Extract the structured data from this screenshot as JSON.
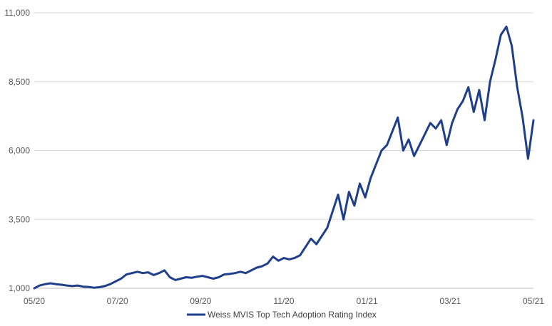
{
  "chart_data": {
    "type": "line",
    "title": "",
    "xlabel": "",
    "ylabel": "",
    "ylim": [
      1000,
      11000
    ],
    "y_ticks": [
      1000,
      3500,
      6000,
      8500,
      11000
    ],
    "y_tick_labels": [
      "1,000",
      "3,500",
      "6,000",
      "8,500",
      "11,000"
    ],
    "x_ticks": [
      "05/20",
      "07/20",
      "09/20",
      "11/20",
      "01/21",
      "03/21",
      "05/21"
    ],
    "grid": "horizontal",
    "legend": "bottom",
    "colors": {
      "line": "#1f3f8a",
      "grid": "#d9d9d9",
      "text": "#595959"
    },
    "series": [
      {
        "name": "Weiss MVIS Top Tech Adoption Rating Index",
        "points": [
          [
            "05/20",
            1000
          ],
          [
            "05/20",
            1100
          ],
          [
            "05/20",
            1150
          ],
          [
            "05/20",
            1180
          ],
          [
            "05/20",
            1150
          ],
          [
            "05/20",
            1130
          ],
          [
            "05/20",
            1100
          ],
          [
            "06/20",
            1080
          ],
          [
            "06/20",
            1100
          ],
          [
            "06/20",
            1060
          ],
          [
            "06/20",
            1050
          ],
          [
            "06/20",
            1020
          ],
          [
            "06/20",
            1040
          ],
          [
            "07/20",
            1080
          ],
          [
            "07/20",
            1150
          ],
          [
            "07/20",
            1250
          ],
          [
            "07/20",
            1350
          ],
          [
            "07/20",
            1500
          ],
          [
            "07/20",
            1550
          ],
          [
            "07/20",
            1600
          ],
          [
            "08/20",
            1550
          ],
          [
            "08/20",
            1580
          ],
          [
            "08/20",
            1480
          ],
          [
            "08/20",
            1550
          ],
          [
            "08/20",
            1650
          ],
          [
            "08/20",
            1400
          ],
          [
            "08/20",
            1300
          ],
          [
            "08/20",
            1350
          ],
          [
            "09/20",
            1400
          ],
          [
            "09/20",
            1380
          ],
          [
            "09/20",
            1420
          ],
          [
            "09/20",
            1450
          ],
          [
            "09/20",
            1400
          ],
          [
            "09/20",
            1350
          ],
          [
            "09/20",
            1400
          ],
          [
            "10/20",
            1500
          ],
          [
            "10/20",
            1520
          ],
          [
            "10/20",
            1550
          ],
          [
            "10/20",
            1600
          ],
          [
            "10/20",
            1550
          ],
          [
            "10/20",
            1650
          ],
          [
            "10/20",
            1750
          ],
          [
            "11/20",
            1800
          ],
          [
            "11/20",
            1900
          ],
          [
            "11/20",
            2150
          ],
          [
            "11/20",
            2000
          ],
          [
            "11/20",
            2100
          ],
          [
            "11/20",
            2050
          ],
          [
            "11/20",
            2100
          ],
          [
            "12/20",
            2200
          ],
          [
            "12/20",
            2500
          ],
          [
            "12/20",
            2800
          ],
          [
            "12/20",
            2600
          ],
          [
            "12/20",
            2900
          ],
          [
            "12/20",
            3200
          ],
          [
            "12/20",
            3800
          ],
          [
            "12/20",
            4400
          ],
          [
            "01/21",
            3500
          ],
          [
            "01/21",
            4500
          ],
          [
            "01/21",
            4000
          ],
          [
            "01/21",
            4800
          ],
          [
            "01/21",
            4300
          ],
          [
            "01/21",
            5000
          ],
          [
            "01/21",
            5500
          ],
          [
            "01/21",
            6000
          ],
          [
            "02/21",
            6200
          ],
          [
            "02/21",
            6700
          ],
          [
            "02/21",
            7200
          ],
          [
            "02/21",
            6000
          ],
          [
            "02/21",
            6400
          ],
          [
            "02/21",
            5800
          ],
          [
            "02/21",
            6200
          ],
          [
            "02/21",
            6600
          ],
          [
            "03/21",
            7000
          ],
          [
            "03/21",
            6800
          ],
          [
            "03/21",
            7100
          ],
          [
            "03/21",
            6200
          ],
          [
            "03/21",
            7000
          ],
          [
            "03/21",
            7500
          ],
          [
            "03/21",
            7800
          ],
          [
            "04/21",
            8300
          ],
          [
            "04/21",
            7400
          ],
          [
            "04/21",
            8200
          ],
          [
            "04/21",
            7100
          ],
          [
            "04/21",
            8500
          ],
          [
            "04/21",
            9300
          ],
          [
            "04/21",
            10200
          ],
          [
            "04/21",
            10500
          ],
          [
            "05/21",
            9800
          ],
          [
            "05/21",
            8300
          ],
          [
            "05/21",
            7200
          ],
          [
            "05/21",
            5700
          ],
          [
            "05/21",
            7100
          ]
        ]
      }
    ]
  }
}
